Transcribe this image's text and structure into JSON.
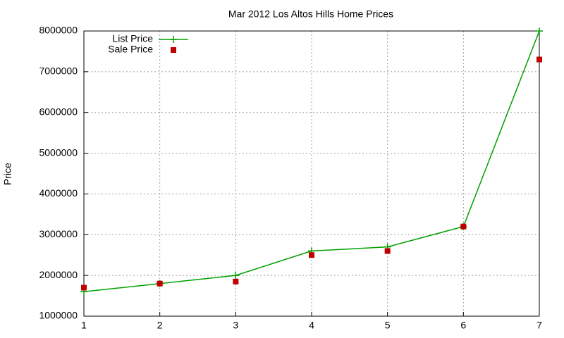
{
  "chart_data": {
    "type": "line",
    "title": "Mar 2012 Los Altos Hills Home Prices",
    "y_label": "Price",
    "x": [
      1,
      2,
      3,
      4,
      5,
      6,
      7
    ],
    "series": [
      {
        "name": "List Price",
        "color": "#00a000",
        "marker": "plus",
        "line": true,
        "values": [
          1600000,
          1800000,
          2000000,
          2600000,
          2700000,
          3200000,
          8000000
        ]
      },
      {
        "name": "Sale Price",
        "color": "#c00000",
        "marker": "square",
        "line": false,
        "values": [
          1700000,
          1800000,
          1850000,
          2500000,
          2600000,
          3200000,
          7300000
        ]
      }
    ],
    "xlim": [
      1,
      7
    ],
    "xticks": [
      1,
      2,
      3,
      4,
      5,
      6,
      7
    ],
    "ylim": [
      1000000,
      8000000
    ],
    "yticks": [
      1000000,
      2000000,
      3000000,
      4000000,
      5000000,
      6000000,
      7000000,
      8000000
    ],
    "grid": true,
    "legend": "top-left"
  }
}
